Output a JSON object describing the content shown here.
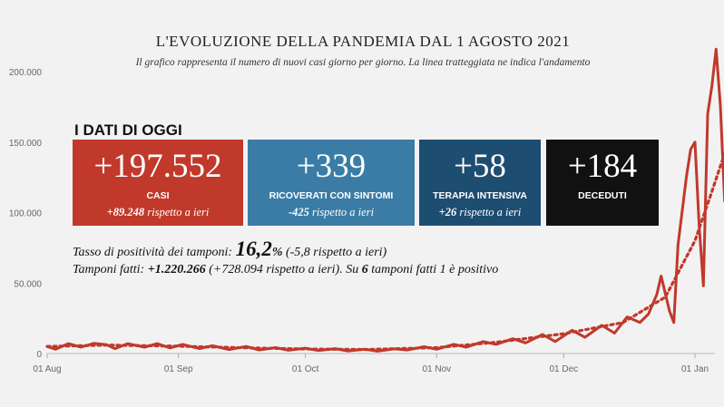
{
  "chart_data": {
    "type": "line",
    "title": "L'EVOLUZIONE DELLA PANDEMIA DAL 1 AGOSTO 2021",
    "subtitle": "Il grafico rappresenta il numero di nuovi casi giorno per giorno. La linea tratteggiata ne indica l'andamento",
    "xlabel": "",
    "ylabel": "",
    "ylim": [
      0,
      220000
    ],
    "y_ticks": [
      0,
      50000,
      100000,
      150000,
      200000
    ],
    "y_tick_labels": [
      "0",
      "50.000",
      "100.000",
      "150.000",
      "200.000"
    ],
    "x_tick_labels": [
      "01 Aug",
      "01 Sep",
      "01 Oct",
      "01 Nov",
      "01 Dec",
      "01 Jan"
    ],
    "x_tick_dates": [
      "2021-08-01",
      "2021-09-01",
      "2021-10-01",
      "2021-11-01",
      "2021-12-01",
      "2022-01-01"
    ],
    "grid": false,
    "series": [
      {
        "style": "solid",
        "color": "#c0392b",
        "points": [
          [
            "2021-08-01",
            5000
          ],
          [
            "2021-08-03",
            3000
          ],
          [
            "2021-08-06",
            7000
          ],
          [
            "2021-08-09",
            4500
          ],
          [
            "2021-08-12",
            7200
          ],
          [
            "2021-08-15",
            6300
          ],
          [
            "2021-08-17",
            3500
          ],
          [
            "2021-08-20",
            7000
          ],
          [
            "2021-08-24",
            4500
          ],
          [
            "2021-08-27",
            7000
          ],
          [
            "2021-08-30",
            4000
          ],
          [
            "2021-09-02",
            6500
          ],
          [
            "2021-09-06",
            3500
          ],
          [
            "2021-09-09",
            5500
          ],
          [
            "2021-09-13",
            2800
          ],
          [
            "2021-09-17",
            5000
          ],
          [
            "2021-09-20",
            2500
          ],
          [
            "2021-09-24",
            4200
          ],
          [
            "2021-09-27",
            2300
          ],
          [
            "2021-10-01",
            3800
          ],
          [
            "2021-10-04",
            2100
          ],
          [
            "2021-10-08",
            3500
          ],
          [
            "2021-10-11",
            1800
          ],
          [
            "2021-10-15",
            3000
          ],
          [
            "2021-10-18",
            1700
          ],
          [
            "2021-10-22",
            3300
          ],
          [
            "2021-10-25",
            2500
          ],
          [
            "2021-10-29",
            4800
          ],
          [
            "2021-11-01",
            3000
          ],
          [
            "2021-11-05",
            6500
          ],
          [
            "2021-11-08",
            4500
          ],
          [
            "2021-11-12",
            8500
          ],
          [
            "2021-11-15",
            6500
          ],
          [
            "2021-11-19",
            10500
          ],
          [
            "2021-11-22",
            7500
          ],
          [
            "2021-11-26",
            13500
          ],
          [
            "2021-11-29",
            8500
          ],
          [
            "2021-12-03",
            16500
          ],
          [
            "2021-12-06",
            11500
          ],
          [
            "2021-12-10",
            20000
          ],
          [
            "2021-12-13",
            14500
          ],
          [
            "2021-12-16",
            26000
          ],
          [
            "2021-12-19",
            22000
          ],
          [
            "2021-12-21",
            28000
          ],
          [
            "2021-12-23",
            42000
          ],
          [
            "2021-12-24",
            55000
          ],
          [
            "2021-12-26",
            30000
          ],
          [
            "2021-12-27",
            22000
          ],
          [
            "2021-12-28",
            77000
          ],
          [
            "2021-12-30",
            126000
          ],
          [
            "2021-12-31",
            145000
          ],
          [
            "2022-01-01",
            150000
          ],
          [
            "2022-01-02",
            90000
          ],
          [
            "2022-01-03",
            48000
          ],
          [
            "2022-01-04",
            170000
          ],
          [
            "2022-01-05",
            190000
          ],
          [
            "2022-01-06",
            216000
          ],
          [
            "2022-01-07",
            176000
          ],
          [
            "2022-01-08",
            108000
          ]
        ]
      },
      {
        "style": "dashed",
        "color": "#c0392b",
        "points": [
          [
            "2021-08-01",
            5000
          ],
          [
            "2021-08-15",
            6000
          ],
          [
            "2021-09-01",
            5200
          ],
          [
            "2021-09-15",
            4200
          ],
          [
            "2021-10-01",
            3200
          ],
          [
            "2021-10-15",
            2800
          ],
          [
            "2021-11-01",
            4200
          ],
          [
            "2021-11-15",
            8000
          ],
          [
            "2021-12-01",
            14000
          ],
          [
            "2021-12-15",
            22000
          ],
          [
            "2021-12-25",
            40000
          ],
          [
            "2022-01-01",
            80000
          ],
          [
            "2022-01-05",
            115000
          ],
          [
            "2022-01-08",
            142000
          ]
        ]
      }
    ]
  },
  "heading": "I DATI DI OGGI",
  "cards": [
    {
      "big": "+197.552",
      "label": "CASI",
      "sub_bold": "+89.248",
      "sub_rest": " rispetto a ieri",
      "color": "#c0392b"
    },
    {
      "big": "+339",
      "label": "RICOVERATI CON SINTOMI",
      "sub_bold": "-425",
      "sub_rest": " rispetto a ieri",
      "color": "#3a7ca5"
    },
    {
      "big": "+58",
      "label": "TERAPIA INTENSIVA",
      "sub_bold": "+26",
      "sub_rest": " rispetto a ieri",
      "color": "#1e4d72"
    },
    {
      "big": "+184",
      "label": "DECEDUTI",
      "sub_bold": "",
      "sub_rest": "",
      "color": "#111111"
    }
  ],
  "positivity": {
    "prefix": "Tasso di positività dei tamponi: ",
    "value": "16,2",
    "percent": "%",
    "suffix": " (-5,8 rispetto a ieri)"
  },
  "tests": {
    "prefix": "Tamponi fatti: ",
    "value": "+1.220.266",
    "middle": " (+728.094 rispetto a ieri). Su ",
    "count": "6",
    "suffix": " tamponi fatti 1 è positivo"
  }
}
